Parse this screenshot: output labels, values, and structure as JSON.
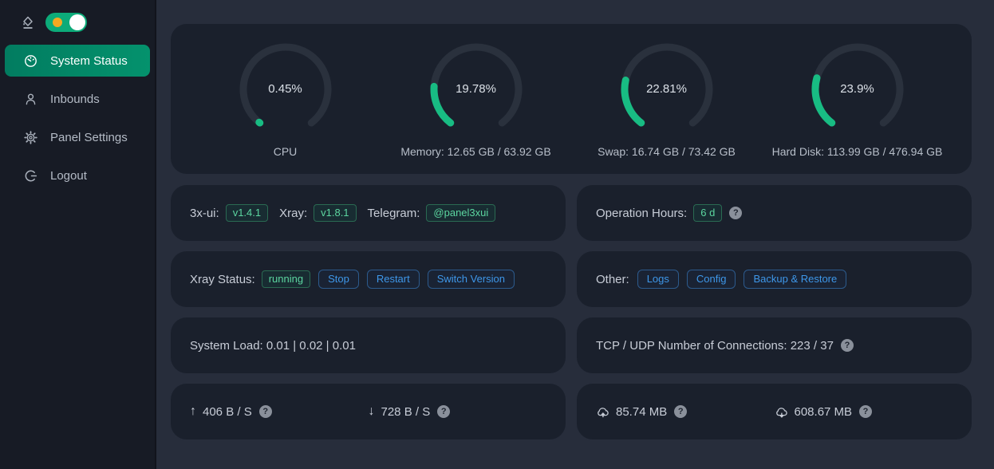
{
  "colors": {
    "page_bg": "#272d3b",
    "sidebar_bg": "#171b25",
    "card_bg": "#1a202c",
    "active_item_green": "#04926d",
    "toggle_green": "#0cab79",
    "toggle_sun_orange": "#f6a821",
    "gauge_fill": "#18bc83",
    "gauge_track": "#2a313d",
    "tag_green_text": "#5cd6a0",
    "button_blue_text": "#3e97e9"
  },
  "sidebar": {
    "theme_toggle_state": "on",
    "items": [
      {
        "label": "System Status",
        "active": true
      },
      {
        "label": "Inbounds",
        "active": false
      },
      {
        "label": "Panel Settings",
        "active": false
      },
      {
        "label": "Logout",
        "active": false
      }
    ]
  },
  "status_card": {
    "gauges": [
      {
        "percent": 0.45,
        "percent_label": "0.45%",
        "label": "CPU"
      },
      {
        "percent": 19.78,
        "percent_label": "19.78%",
        "label": "Memory: 12.65 GB / 63.92 GB"
      },
      {
        "percent": 22.81,
        "percent_label": "22.81%",
        "label": "Swap: 16.74 GB / 73.42 GB"
      },
      {
        "percent": 23.9,
        "percent_label": "23.9%",
        "label": "Hard Disk: 113.99 GB / 476.94 GB"
      }
    ]
  },
  "cards": {
    "versions": {
      "xui_label": "3x-ui:",
      "xui_tag": "v1.4.1",
      "xray_label": "Xray:",
      "xray_tag": "v1.8.1",
      "tg_label": "Telegram:",
      "tg_tag": "@panel3xui"
    },
    "uptime": {
      "label": "Operation Hours:",
      "tag": "6 d"
    },
    "xray": {
      "label": "Xray Status:",
      "status_tag": "running",
      "buttons": [
        "Stop",
        "Restart",
        "Switch Version"
      ]
    },
    "other": {
      "label": "Other:",
      "buttons": [
        "Logs",
        "Config",
        "Backup & Restore"
      ]
    },
    "load": {
      "text": "System Load: 0.01 | 0.02 | 0.01"
    },
    "connections": {
      "text": "TCP / UDP Number of Connections: 223 / 37"
    },
    "speed": {
      "up": "406 B / S",
      "down": "728 B / S",
      "up_arrow": "↑",
      "down_arrow": "↓"
    },
    "traffic": {
      "sent": "85.74 MB",
      "received": "608.67 MB"
    },
    "help_glyph": "?"
  }
}
